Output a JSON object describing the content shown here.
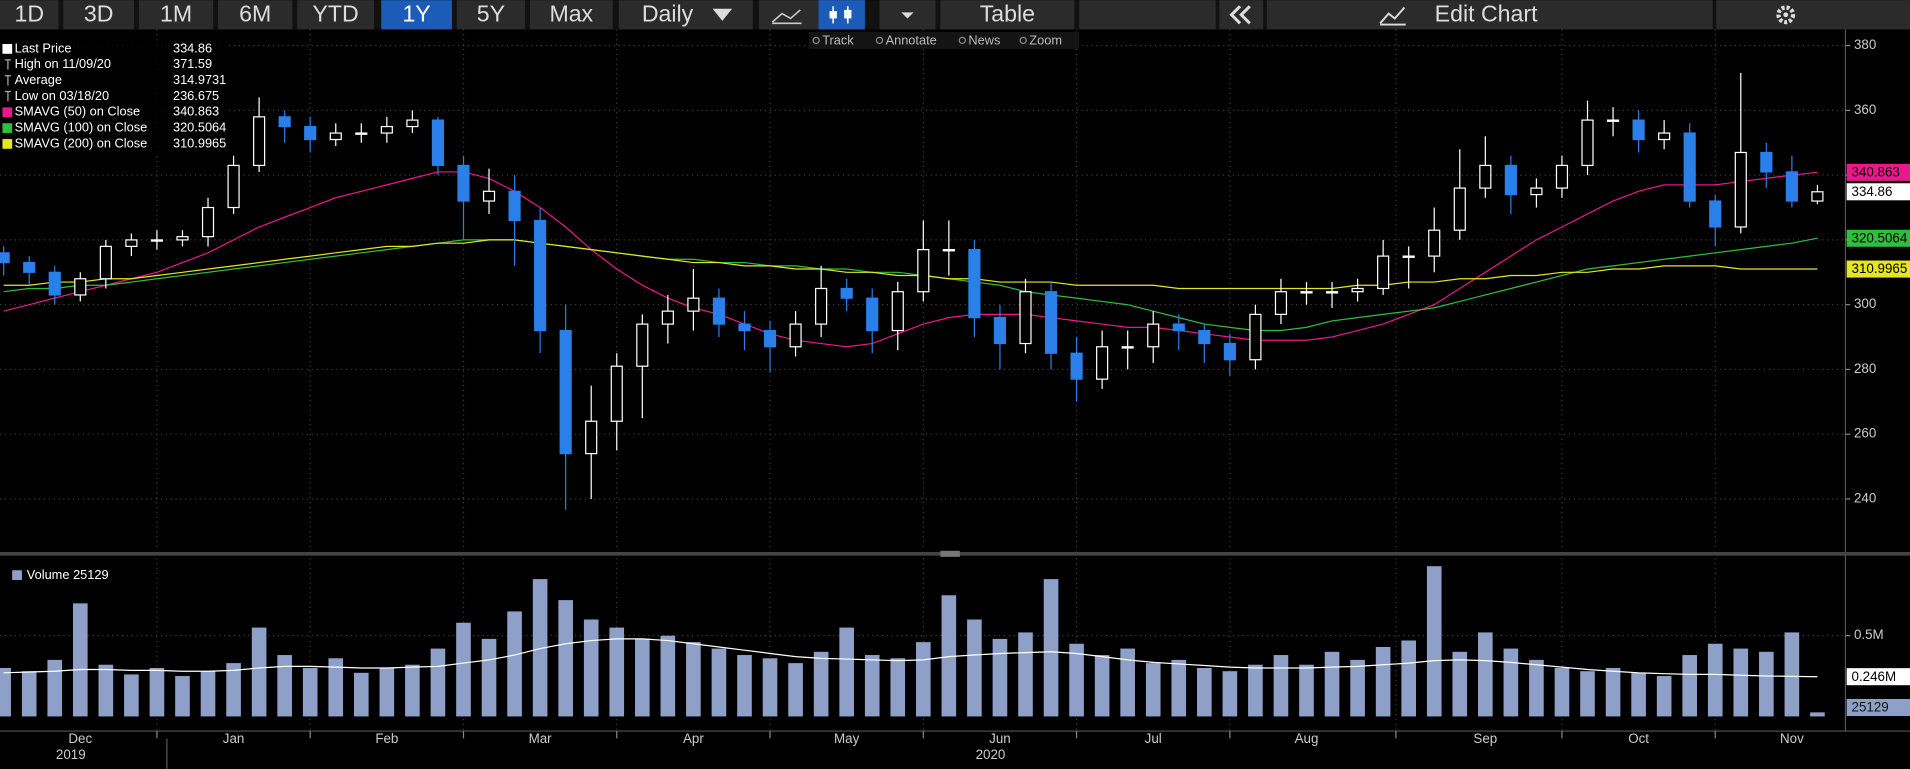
{
  "toolbar": {
    "ranges": [
      "1D",
      "3D",
      "1M",
      "6M",
      "YTD",
      "1Y",
      "5Y",
      "Max"
    ],
    "active_range": 5,
    "interval": "Daily",
    "table": "Table",
    "edit": "Edit Chart",
    "tools": [
      "Track",
      "Annotate",
      "News",
      "Zoom"
    ]
  },
  "chart_data": [
    {
      "type": "candlestick",
      "open": [
        316,
        313,
        310,
        303,
        308,
        318,
        320,
        320,
        321,
        330,
        343,
        358,
        355,
        351,
        353,
        353,
        355,
        357,
        343,
        332,
        335,
        326,
        292,
        254,
        264,
        281,
        294,
        298,
        302,
        294,
        292,
        287,
        294,
        305,
        302,
        292,
        304,
        317,
        317,
        296,
        288,
        304,
        285,
        277,
        287,
        287,
        294,
        292,
        288,
        283,
        297,
        304,
        304,
        304,
        305,
        315,
        315,
        323,
        336,
        343,
        334,
        336,
        343,
        357,
        357,
        351,
        353,
        332,
        324,
        347,
        341,
        332
      ],
      "high": [
        318,
        315,
        312,
        310,
        320,
        322,
        323,
        323,
        333,
        346,
        364,
        360,
        358,
        356,
        356,
        358,
        360,
        358,
        346,
        342,
        340,
        330,
        300,
        275,
        285,
        297,
        303,
        311,
        305,
        298,
        295,
        298,
        312,
        308,
        305,
        307,
        326,
        326,
        320,
        300,
        308,
        307,
        290,
        292,
        292,
        298,
        297,
        294,
        291,
        300,
        308,
        307,
        307,
        308,
        320,
        318,
        330,
        348,
        352,
        346,
        339,
        346,
        363,
        361,
        360,
        357,
        356,
        334,
        371.59,
        350,
        346,
        337
      ],
      "low": [
        309,
        306,
        300,
        301,
        305,
        315,
        317,
        318,
        318,
        328,
        341,
        350,
        347,
        349,
        350,
        350,
        353,
        340,
        320,
        328,
        312,
        285,
        236.675,
        240,
        255,
        265,
        288,
        292,
        290,
        286,
        279,
        284,
        290,
        298,
        285,
        286,
        301,
        309,
        290,
        280,
        285,
        280,
        270,
        274,
        280,
        282,
        286,
        282,
        278,
        280,
        294,
        300,
        299,
        301,
        303,
        305,
        310,
        320,
        333,
        328,
        330,
        333,
        340,
        352,
        347,
        348,
        330,
        318,
        322,
        336,
        330,
        331
      ],
      "close": [
        313,
        310,
        303,
        308,
        318,
        320,
        320,
        321,
        330,
        343,
        358,
        355,
        351,
        353,
        353,
        355,
        357,
        343,
        332,
        335,
        326,
        292,
        254,
        264,
        281,
        294,
        298,
        302,
        294,
        292,
        287,
        294,
        305,
        302,
        292,
        304,
        317,
        317,
        296,
        288,
        304,
        285,
        277,
        287,
        287,
        294,
        292,
        288,
        283,
        297,
        304,
        304,
        304,
        305,
        315,
        315,
        323,
        336,
        343,
        334,
        336,
        343,
        357,
        357,
        351,
        353,
        332,
        324,
        347,
        341,
        332,
        334.86
      ],
      "up_color": "#ffffff",
      "down_color": "#2a7fe8",
      "ylim": [
        224,
        385
      ],
      "yticks": [
        240,
        260,
        280,
        300,
        320,
        340,
        360,
        380
      ],
      "grid": true,
      "legend": [
        {
          "label": "Last Price",
          "value": 334.86
        },
        {
          "label": "High on 11/09/20",
          "value": 371.59
        },
        {
          "label": "Average",
          "value": 314.9731
        },
        {
          "label": "Low on 03/18/20",
          "value": 236.675
        }
      ],
      "series": [
        {
          "name": "SMAVG (50)  on Close",
          "color": "#e8198b",
          "values": [
            298,
            300,
            302,
            304,
            306,
            308,
            310,
            313,
            316,
            320,
            324,
            327,
            330,
            333,
            335,
            337,
            339,
            341,
            341,
            339,
            335,
            330,
            324,
            317,
            311,
            306,
            302,
            299,
            297,
            294,
            291,
            289,
            288,
            287,
            288,
            291,
            294,
            296,
            297,
            297,
            297,
            296,
            295,
            294,
            293,
            293,
            292,
            291,
            290,
            289,
            289,
            289,
            290,
            292,
            294,
            297,
            300,
            305,
            310,
            315,
            320,
            324,
            328,
            332,
            335,
            337,
            337,
            337,
            338,
            339,
            340,
            340.863
          ]
        },
        {
          "name": "SMAVG (100)  on Close",
          "color": "#2fbf3f",
          "values": [
            304,
            305,
            305,
            306,
            306,
            307,
            308,
            309,
            310,
            311,
            312,
            313,
            314,
            315,
            316,
            317,
            318,
            319,
            320,
            320,
            320,
            319,
            318,
            317,
            316,
            315,
            314,
            314,
            313,
            313,
            312,
            312,
            311,
            311,
            310,
            310,
            309,
            308,
            307,
            306,
            304,
            303,
            302,
            301,
            300,
            298,
            296,
            294,
            293,
            292,
            292,
            293,
            295,
            296,
            297,
            298,
            299,
            301,
            303,
            305,
            307,
            309,
            311,
            312,
            313,
            314,
            315,
            316,
            317,
            318,
            319,
            320.5064
          ]
        },
        {
          "name": "SMAVG (200)  on Close",
          "color": "#e6e620",
          "values": [
            306,
            306,
            307,
            307,
            308,
            308,
            309,
            310,
            311,
            312,
            313,
            314,
            315,
            316,
            317,
            318,
            318,
            319,
            319,
            320,
            320,
            319,
            318,
            317,
            316,
            315,
            314,
            313,
            313,
            312,
            312,
            311,
            311,
            310,
            310,
            309,
            309,
            308,
            308,
            307,
            307,
            307,
            306,
            306,
            306,
            306,
            305,
            305,
            305,
            305,
            305,
            305,
            305,
            306,
            306,
            307,
            307,
            308,
            308,
            309,
            309,
            310,
            310,
            311,
            311,
            312,
            312,
            312,
            311,
            311,
            311,
            310.9965
          ]
        }
      ]
    },
    {
      "type": "bar",
      "name": "Volume",
      "color": "#8ea0c8",
      "categories": [
        null,
        null,
        null,
        "Dec",
        null,
        null,
        null,
        null,
        null,
        "Jan",
        null,
        null,
        null,
        null,
        null,
        "Feb",
        null,
        null,
        null,
        null,
        null,
        "Mar",
        null,
        null,
        null,
        null,
        null,
        "Apr",
        null,
        null,
        null,
        null,
        null,
        "May",
        null,
        null,
        null,
        null,
        null,
        "Jun",
        null,
        null,
        null,
        null,
        null,
        "Jul",
        null,
        null,
        null,
        null,
        null,
        "Aug",
        null,
        null,
        null,
        null,
        null,
        null,
        "Sep",
        null,
        null,
        null,
        null,
        null,
        "Oct",
        null,
        null,
        null,
        null,
        null,
        "Nov",
        null
      ],
      "sublabels": [
        null,
        null,
        null,
        "2019",
        null,
        null,
        null,
        null,
        null,
        null,
        null,
        null,
        null,
        null,
        null,
        null,
        null,
        null,
        null,
        null,
        null,
        null,
        null,
        null,
        null,
        null,
        null,
        null,
        null,
        null,
        null,
        null,
        null,
        null,
        null,
        null,
        null,
        null,
        null,
        "2020",
        null,
        null,
        null,
        null,
        null,
        null,
        null,
        null,
        null,
        null,
        null,
        null,
        null,
        null,
        null,
        null,
        null,
        null,
        null,
        null,
        null,
        null,
        null,
        null,
        null,
        null,
        null,
        null,
        null,
        null,
        null,
        null
      ],
      "values": [
        300000,
        280000,
        350000,
        700000,
        320000,
        260000,
        300000,
        250000,
        280000,
        330000,
        550000,
        380000,
        300000,
        360000,
        270000,
        300000,
        320000,
        420000,
        580000,
        480000,
        650000,
        850000,
        720000,
        600000,
        550000,
        480000,
        500000,
        460000,
        420000,
        380000,
        360000,
        330000,
        400000,
        550000,
        380000,
        360000,
        460000,
        750000,
        600000,
        480000,
        520000,
        850000,
        450000,
        380000,
        420000,
        330000,
        350000,
        300000,
        280000,
        320000,
        380000,
        320000,
        400000,
        350000,
        430000,
        470000,
        930000,
        400000,
        520000,
        420000,
        350000,
        300000,
        280000,
        300000,
        270000,
        250000,
        380000,
        450000,
        420000,
        400000,
        520000,
        25129
      ],
      "average": {
        "color": "#ffffff",
        "last_label": "0.246M",
        "values": [
          270000,
          275000,
          280000,
          290000,
          290000,
          285000,
          285000,
          280000,
          280000,
          285000,
          300000,
          310000,
          310000,
          305000,
          300000,
          300000,
          305000,
          310000,
          330000,
          350000,
          380000,
          420000,
          450000,
          470000,
          480000,
          480000,
          470000,
          450000,
          430000,
          410000,
          390000,
          370000,
          360000,
          355000,
          350000,
          345000,
          350000,
          370000,
          380000,
          390000,
          395000,
          400000,
          390000,
          370000,
          350000,
          335000,
          325000,
          315000,
          305000,
          300000,
          300000,
          300000,
          305000,
          310000,
          320000,
          330000,
          345000,
          350000,
          345000,
          335000,
          320000,
          305000,
          290000,
          280000,
          270000,
          265000,
          260000,
          260000,
          255000,
          250000,
          248000,
          246000
        ]
      },
      "ylim": [
        0,
        950000
      ],
      "yticks": [
        {
          "value": 500000,
          "label": "0.5M"
        }
      ],
      "grid": true
    }
  ]
}
